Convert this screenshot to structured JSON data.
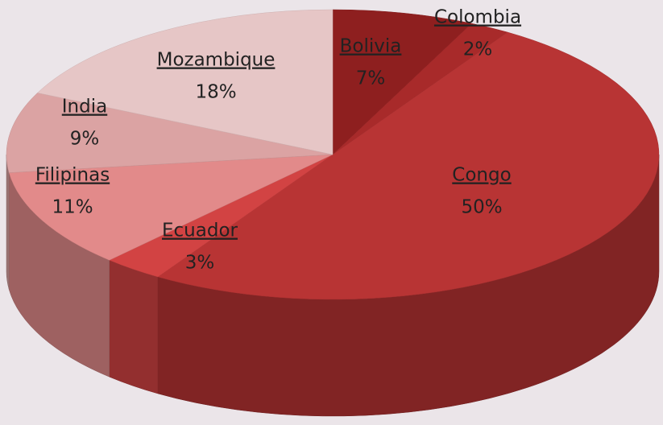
{
  "chart_data": {
    "type": "pie3d",
    "categories": [
      "Bolivia",
      "Colombia",
      "Congo",
      "Ecuador",
      "Filipinas",
      "India",
      "Mozambique"
    ],
    "values": [
      7,
      2,
      50,
      3,
      11,
      9,
      18
    ],
    "value_labels": [
      "7%",
      "2%",
      "50%",
      "3%",
      "11%",
      "9%",
      "18%"
    ],
    "colors": [
      "#8e1f1f",
      "#a82a2a",
      "#b83434",
      "#d24343",
      "#e28a8a",
      "#dba3a3",
      "#e6c6c6"
    ]
  }
}
